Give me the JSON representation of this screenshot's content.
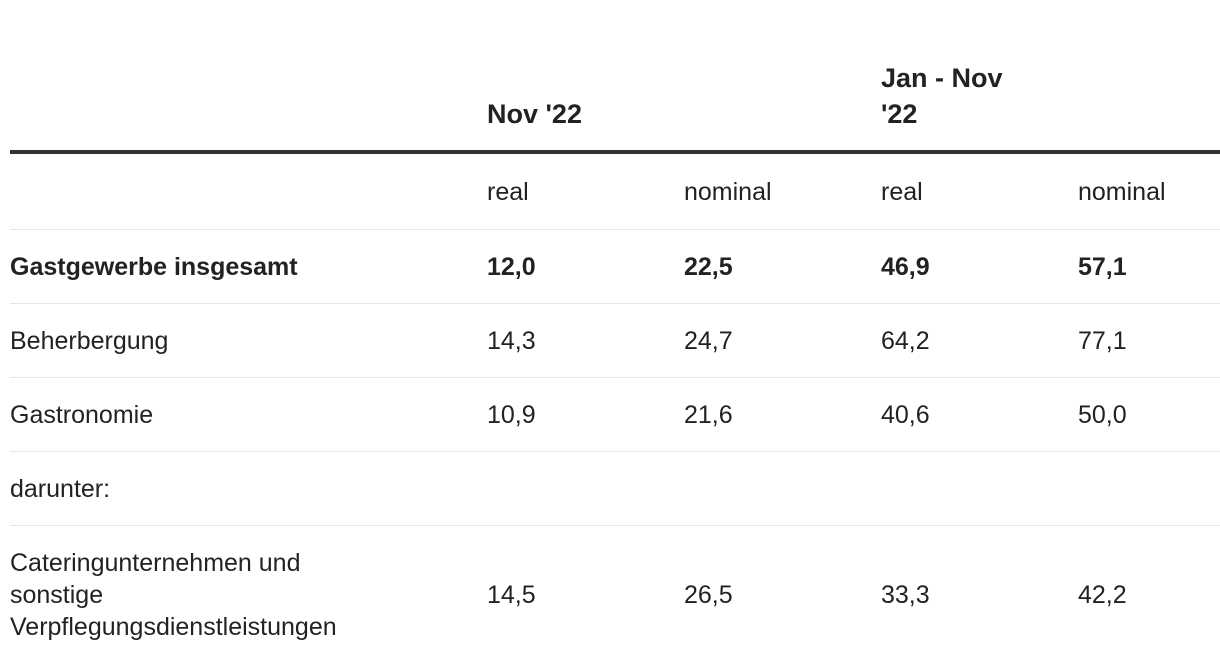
{
  "header": [
    "Nov '22",
    "Jan - Nov '22"
  ],
  "subheader": [
    "real",
    "nominal",
    "real",
    "nominal"
  ],
  "rows": [
    {
      "label": "Gastgewerbe insgesamt",
      "values": [
        "12,0",
        "22,5",
        "46,9",
        "57,1"
      ]
    },
    {
      "label": "Beherbergung",
      "values": [
        "14,3",
        "24,7",
        "64,2",
        "77,1"
      ]
    },
    {
      "label": "Gastronomie",
      "values": [
        "10,9",
        "21,6",
        "40,6",
        "50,0"
      ]
    },
    {
      "label": "darunter:"
    },
    {
      "label": "Cateringunternehmen und sonstige Verpflegungsdienstleistungen",
      "values": [
        "14,5",
        "26,5",
        "33,3",
        "42,2"
      ]
    }
  ]
}
